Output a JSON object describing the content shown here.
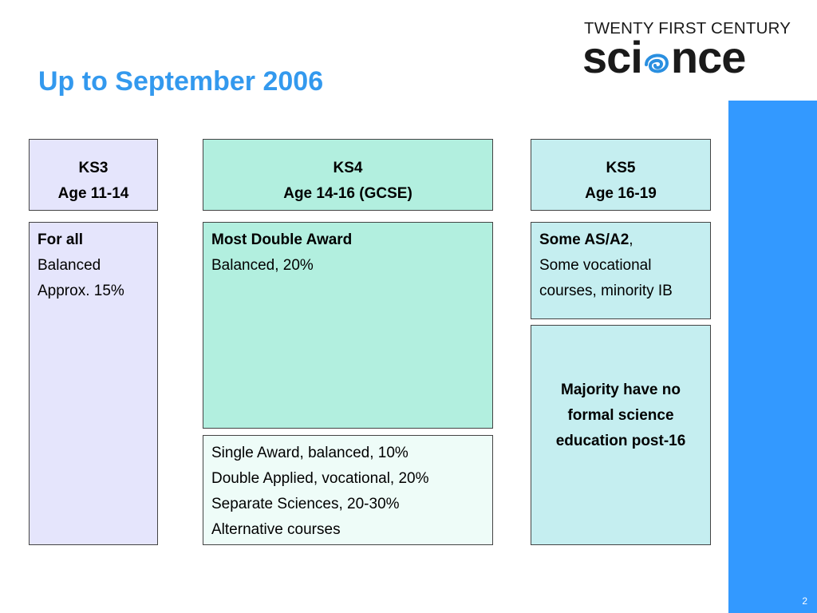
{
  "slide": {
    "title": "Up to September 2006",
    "page_number": "2"
  },
  "logo": {
    "line1": "TWENTY FIRST CENTURY",
    "main_left": "sci",
    "main_right": "nce",
    "swirl_icon": "swirl-e-icon",
    "swirl_color": "#2a8fe0"
  },
  "colors": {
    "title": "#3399ee",
    "side_bar": "#3399ff",
    "ks3": "#e5e5fc",
    "ks4": "#b2efdf",
    "ks5": "#c5eef0",
    "ks4_alt": "#eefcf8"
  },
  "ks3": {
    "header_line1": "KS3",
    "header_line2": "Age 11-14",
    "body_bold": "For all",
    "body_line2": "Balanced",
    "body_line3": "Approx. 15%"
  },
  "ks4": {
    "header_line1": "KS4",
    "header_line2": "Age 14-16 (GCSE)",
    "body_bold": "Most Double Award",
    "body_line2": "Balanced, 20%",
    "alt_items": [
      "Single Award, balanced, 10%",
      "Double Applied, vocational, 20%",
      "Separate Sciences, 20-30%",
      "Alternative courses"
    ]
  },
  "ks5": {
    "header_line1": "KS5",
    "header_line2": "Age 16-19",
    "body_bold": "Some AS/A2",
    "body_bold_suffix": ",",
    "body_line2": "Some vocational",
    "body_line3": "courses, minority IB",
    "note_lines": [
      "Majority have no",
      "formal science",
      "education post-16"
    ]
  }
}
